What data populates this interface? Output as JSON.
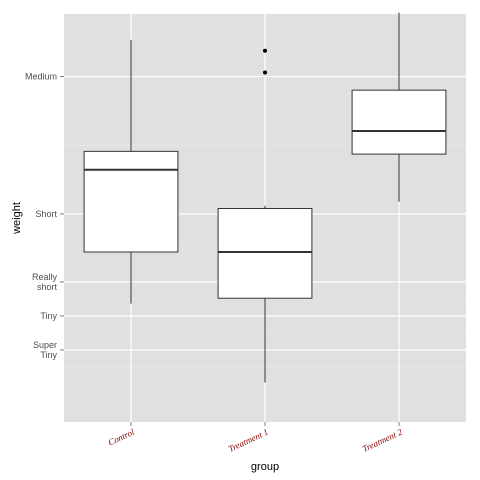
{
  "chart_data": {
    "type": "box",
    "xlabel": "group",
    "ylabel": "weight",
    "categories": [
      "Control",
      "Treatment 1",
      "Treatment 2"
    ],
    "ylim": [
      3.3,
      6.3
    ],
    "y_ticks": [
      {
        "value": 5.84,
        "label": [
          "Medium"
        ]
      },
      {
        "value": 4.83,
        "label": [
          "Short"
        ]
      },
      {
        "value": 4.33,
        "label": [
          "Really",
          "short"
        ]
      },
      {
        "value": 4.08,
        "label": [
          "Tiny"
        ]
      },
      {
        "value": 3.83,
        "label": [
          "Super",
          "Tiny"
        ]
      }
    ],
    "boxes": [
      {
        "category": "Control",
        "min": 4.17,
        "q1": 4.55,
        "median": 5.155,
        "q3": 5.29,
        "max": 6.11,
        "outliers": []
      },
      {
        "category": "Treatment 1",
        "min": 3.59,
        "q1": 4.21,
        "median": 4.55,
        "q3": 4.87,
        "max": 4.89,
        "outliers": [
          5.87,
          6.03
        ]
      },
      {
        "category": "Treatment 2",
        "min": 4.92,
        "q1": 5.27,
        "median": 5.44,
        "q3": 5.74,
        "max": 6.31,
        "outliers": []
      }
    ],
    "grid": true,
    "legend": "none",
    "colors": {
      "panel": "#e0e0e0",
      "grid_major": "#ffffff",
      "grid_minor": "#ebebeb",
      "box_fill": "#ffffff",
      "box_line": "#333333",
      "tick_x_text": "#8b0000",
      "tick_y_text": "#4d4d4d"
    }
  }
}
